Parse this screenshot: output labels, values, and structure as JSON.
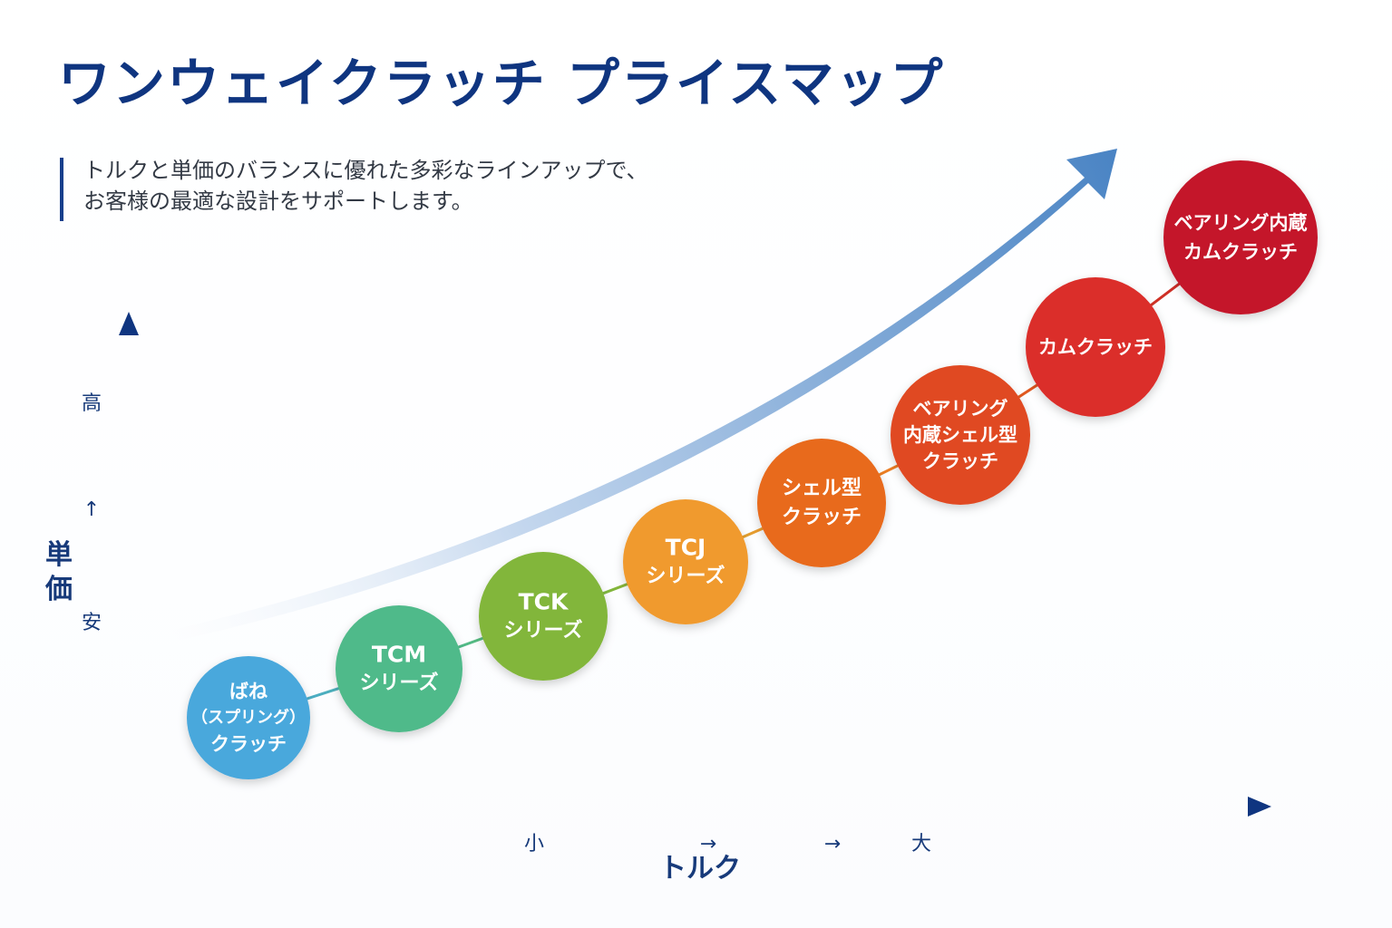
{
  "title": "ワンウェイクラッチ プライスマップ",
  "subtitle": {
    "line1": "トルクと単価のバランスに優れた多彩なラインアップで、",
    "line2": "お客様の最適な設計をサポートします。"
  },
  "y_axis": {
    "label_top": "単",
    "label_bottom": "価",
    "high": "高",
    "arrow": "↑",
    "low": "安"
  },
  "x_axis": {
    "small": "小",
    "arrow1": "→",
    "arrow2": "→",
    "large": "大",
    "label": "トルク"
  },
  "colors": {
    "title": "#0f3580",
    "axis": "#173f8c",
    "trend_arrow": "#4a84c4"
  },
  "nodes": [
    {
      "lines": [
        "ばね",
        "（スプリング）",
        "クラッチ"
      ],
      "color": "#4aa8dc"
    },
    {
      "lines": [
        "TCM",
        "シリーズ"
      ],
      "color": "#4fba8a"
    },
    {
      "lines": [
        "TCK",
        "シリーズ"
      ],
      "color": "#82b63a"
    },
    {
      "lines": [
        "TCJ",
        "シリーズ"
      ],
      "color": "#f09a2e"
    },
    {
      "lines": [
        "シェル型",
        "クラッチ"
      ],
      "color": "#e86a1c"
    },
    {
      "lines": [
        "ベアリング",
        "内蔵シェル型",
        "クラッチ"
      ],
      "color": "#e04a20"
    },
    {
      "lines": [
        "カムクラッチ"
      ],
      "color": "#db2e2a"
    },
    {
      "lines": [
        "ベアリング内蔵",
        "カムクラッチ"
      ],
      "color": "#c4182a"
    }
  ]
}
